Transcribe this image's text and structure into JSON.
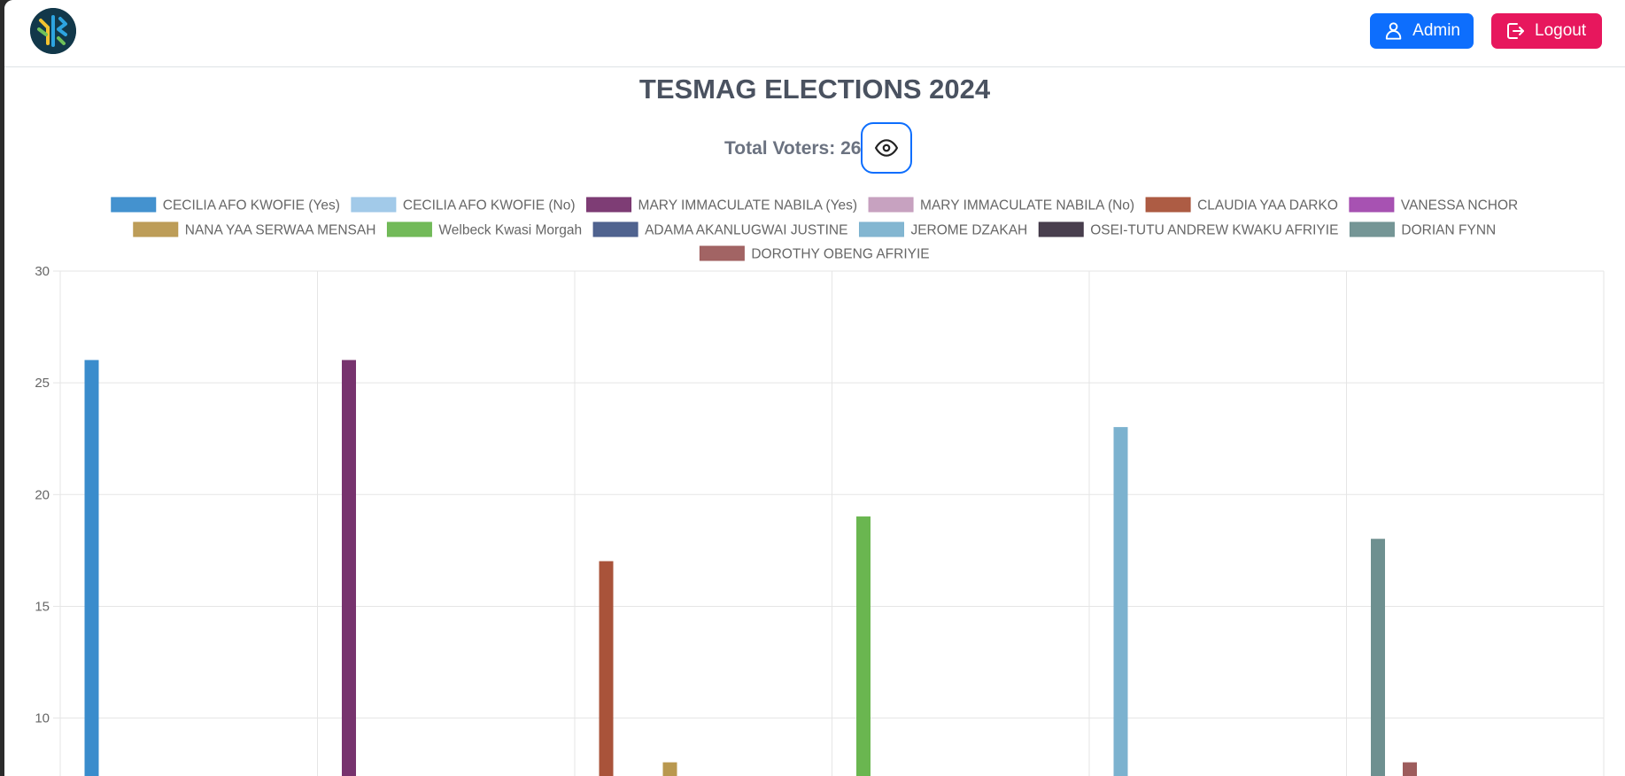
{
  "header": {
    "admin_label": "Admin",
    "logout_label": "Logout"
  },
  "page": {
    "title": "TESMAG ELECTIONS 2024",
    "total_voters_label": "Total Voters: 26"
  },
  "chart_data": {
    "type": "bar",
    "ylim": [
      0,
      30
    ],
    "yticks": [
      10,
      15,
      20,
      25,
      30
    ],
    "grid": true,
    "legend_position": "top",
    "groups": 6,
    "series": [
      {
        "name": "CECILIA AFO KWOFIE (Yes)",
        "color": "#3a8ccc",
        "group": 0,
        "slot": 0,
        "value": 26
      },
      {
        "name": "CECILIA AFO KWOFIE (No)",
        "color": "#9dc7e8",
        "group": 0,
        "slot": 1,
        "value": 0
      },
      {
        "name": "MARY IMMACULATE NABILA (Yes)",
        "color": "#77336e",
        "group": 1,
        "slot": 0,
        "value": 26
      },
      {
        "name": "MARY IMMACULATE NABILA (No)",
        "color": "#c49dbd",
        "group": 1,
        "slot": 1,
        "value": 0
      },
      {
        "name": "CLAUDIA YAA DARKO",
        "color": "#a9533a",
        "group": 2,
        "slot": 0,
        "value": 17
      },
      {
        "name": "VANESSA NCHOR",
        "color": "#a249ae",
        "group": 2,
        "slot": 1,
        "value": 0
      },
      {
        "name": "NANA YAA SERWAA MENSAH",
        "color": "#b9984f",
        "group": 2,
        "slot": 2,
        "value": 8
      },
      {
        "name": "Welbeck Kwasi Morgah",
        "color": "#6ab650",
        "group": 3,
        "slot": 0,
        "value": 19
      },
      {
        "name": "ADAMA AKANLUGWAI JUSTINE",
        "color": "#475b89",
        "group": 3,
        "slot": 1,
        "value": 0
      },
      {
        "name": "JEROME DZAKAH",
        "color": "#7cb2cf",
        "group": 4,
        "slot": 0,
        "value": 23
      },
      {
        "name": "OSEI-TUTU ANDREW KWAKU AFRIYIE",
        "color": "#3f3545",
        "group": 4,
        "slot": 1,
        "value": 0
      },
      {
        "name": "DORIAN FYNN",
        "color": "#6e9090",
        "group": 5,
        "slot": 0,
        "value": 18
      },
      {
        "name": "DOROTHY OBENG AFRIYIE",
        "color": "#9d5c5c",
        "group": 5,
        "slot": 1,
        "value": 8
      }
    ]
  }
}
